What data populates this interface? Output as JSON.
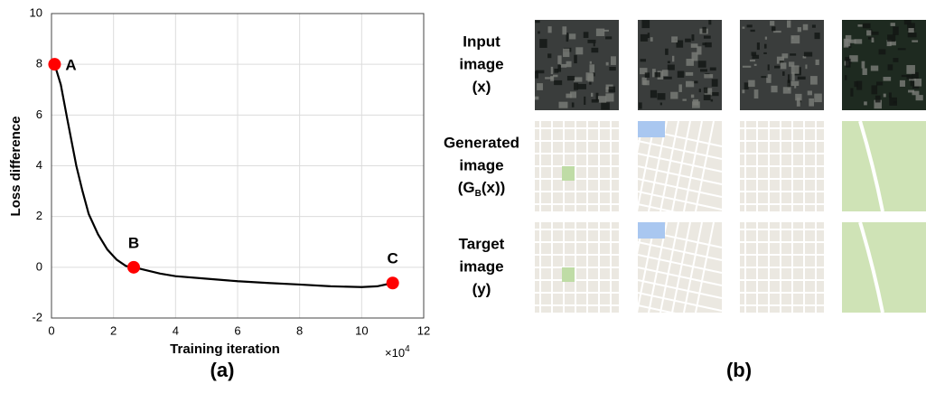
{
  "chart_data": {
    "type": "line",
    "x_label": "Training iteration",
    "y_label": "Loss difference",
    "x_multiplier": {
      "base": "×10",
      "exponent": "4"
    },
    "x": [
      0.1,
      0.3,
      0.5,
      0.8,
      1.0,
      1.2,
      1.5,
      1.8,
      2.1,
      2.4,
      2.65,
      3.0,
      3.5,
      4.0,
      5.0,
      6.0,
      7.0,
      8.0,
      9.0,
      10.0,
      10.5,
      11.0
    ],
    "series": [
      {
        "name": "Loss difference",
        "color": "#000000",
        "values": [
          8,
          7.2,
          5.9,
          4.0,
          3.0,
          2.1,
          1.3,
          0.7,
          0.3,
          0.05,
          0,
          -0.1,
          -0.25,
          -0.35,
          -0.45,
          -0.55,
          -0.62,
          -0.68,
          -0.75,
          -0.78,
          -0.75,
          -0.62
        ]
      }
    ],
    "points": [
      {
        "label": "A",
        "x": 0.1,
        "y": 8,
        "color": "#ff0000"
      },
      {
        "label": "B",
        "x": 2.65,
        "y": 0,
        "color": "#ff0000"
      },
      {
        "label": "C",
        "x": 11.0,
        "y": -0.62,
        "color": "#ff0000"
      }
    ],
    "xlim": [
      0,
      12
    ],
    "ylim": [
      -2,
      10
    ],
    "xticks": [
      0,
      2,
      4,
      6,
      8,
      10,
      12
    ],
    "yticks": [
      -2,
      0,
      2,
      4,
      6,
      8,
      10
    ],
    "grid": true,
    "caption": "(a)"
  },
  "panel_b": {
    "caption": "(b)",
    "rows": [
      {
        "label_lines": [
          "Input",
          "image",
          "(x)"
        ],
        "kind": "aerial"
      },
      {
        "label_lines": [
          "Generated",
          "image",
          {
            "pre": "(G",
            "sub": "B",
            "post": "(x))"
          }
        ],
        "kind": "map"
      },
      {
        "label_lines": [
          "Target",
          "image",
          "(y)"
        ],
        "kind": "map"
      }
    ]
  }
}
